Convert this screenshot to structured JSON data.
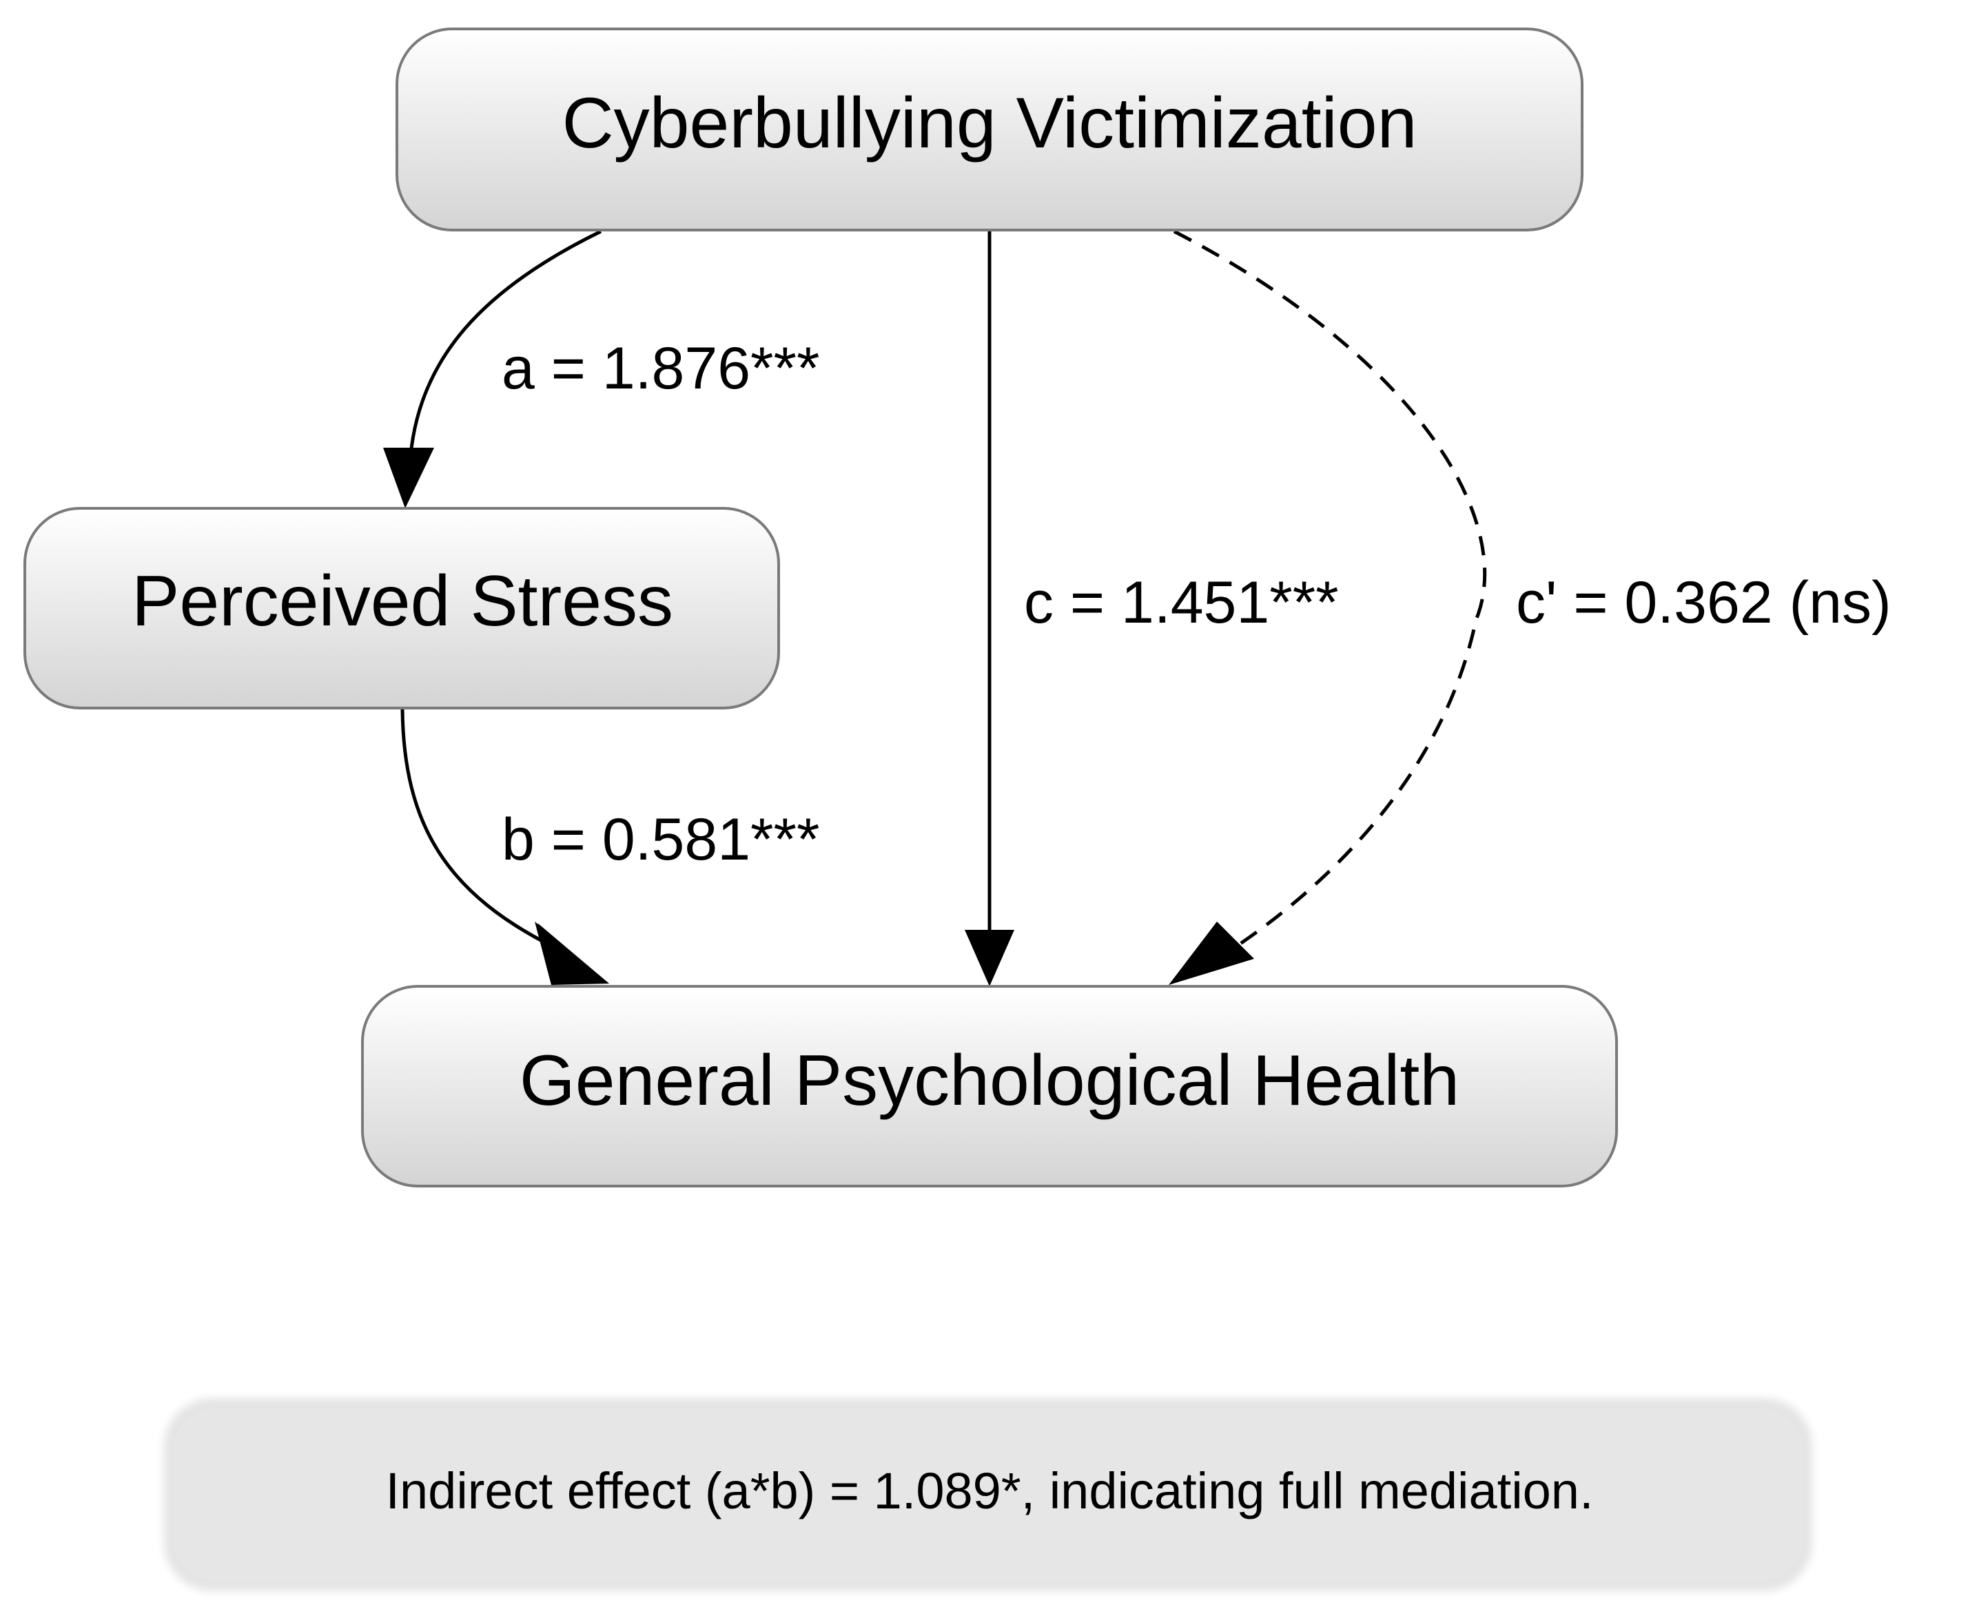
{
  "nodes": {
    "cyberbullying": {
      "label": "Cyberbullying Victimization"
    },
    "stress": {
      "label": "Perceived Stress"
    },
    "health": {
      "label": "General Psychological Health"
    }
  },
  "paths": {
    "a": {
      "label": "a = 1.876***",
      "from": "Cyberbullying Victimization",
      "to": "Perceived Stress",
      "coefficient": 1.876,
      "significance": "***"
    },
    "b": {
      "label": "b = 0.581***",
      "from": "Perceived Stress",
      "to": "General Psychological Health",
      "coefficient": 0.581,
      "significance": "***"
    },
    "c": {
      "label": "c = 1.451***",
      "from": "Cyberbullying Victimization",
      "to": "General Psychological Health",
      "coefficient": 1.451,
      "significance": "***"
    },
    "c_prime": {
      "label": "c' = 0.362 (ns)",
      "from": "Cyberbullying Victimization",
      "to": "General Psychological Health",
      "coefficient": 0.362,
      "significance": "ns",
      "line_style": "dashed"
    }
  },
  "note": {
    "text": "Indirect effect (a*b) = 1.089*, indicating full mediation."
  },
  "colors": {
    "node_fill_top": "#ffffff",
    "node_fill_bottom": "#d6d6d6",
    "node_stroke": "#7a7a7a",
    "edge": "#000000",
    "note_fill": "#e2e2e2"
  }
}
